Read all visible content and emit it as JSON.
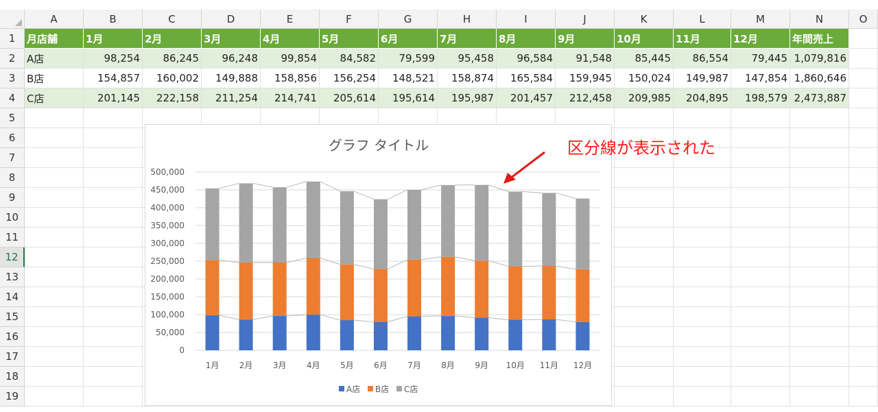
{
  "columns": [
    "A",
    "B",
    "C",
    "D",
    "E",
    "F",
    "G",
    "H",
    "I",
    "J",
    "K",
    "L",
    "M",
    "N",
    "O"
  ],
  "rows": [
    "1",
    "2",
    "3",
    "4",
    "5",
    "6",
    "7",
    "8",
    "9",
    "10",
    "11",
    "12",
    "13",
    "14",
    "15",
    "16",
    "17",
    "18",
    "19"
  ],
  "active_row": "12",
  "table": {
    "header": [
      "月店舗",
      "1月",
      "2月",
      "3月",
      "4月",
      "5月",
      "6月",
      "7月",
      "8月",
      "9月",
      "10月",
      "11月",
      "12月",
      "年間売上"
    ],
    "data": [
      [
        "A店",
        "98,254",
        "86,245",
        "96,248",
        "99,854",
        "84,582",
        "79,599",
        "95,458",
        "96,584",
        "91,548",
        "85,445",
        "86,554",
        "79,445",
        "1,079,816"
      ],
      [
        "B店",
        "154,857",
        "160,002",
        "149,888",
        "158,856",
        "156,254",
        "148,521",
        "158,874",
        "165,584",
        "159,945",
        "150,024",
        "149,987",
        "147,854",
        "1,860,646"
      ],
      [
        "C店",
        "201,145",
        "222,158",
        "211,254",
        "214,741",
        "205,614",
        "195,614",
        "195,987",
        "201,457",
        "212,458",
        "209,985",
        "204,895",
        "198,579",
        "2,473,887"
      ]
    ]
  },
  "chart_data": {
    "type": "bar",
    "stacked": true,
    "title": "グラフ タイトル",
    "categories": [
      "1月",
      "2月",
      "3月",
      "4月",
      "5月",
      "6月",
      "7月",
      "8月",
      "9月",
      "10月",
      "11月",
      "12月"
    ],
    "series": [
      {
        "name": "A店",
        "color": "#4472c4",
        "values": [
          98254,
          86245,
          96248,
          99854,
          84582,
          79599,
          95458,
          96584,
          91548,
          85445,
          86554,
          79445
        ]
      },
      {
        "name": "B店",
        "color": "#ed7d31",
        "values": [
          154857,
          160002,
          149888,
          158856,
          156254,
          148521,
          158874,
          165584,
          159945,
          150024,
          149987,
          147854
        ]
      },
      {
        "name": "C店",
        "color": "#a5a5a5",
        "values": [
          201145,
          222158,
          211254,
          214741,
          205614,
          195614,
          195987,
          201457,
          212458,
          209985,
          204895,
          198579
        ]
      }
    ],
    "ylim": [
      0,
      500000
    ],
    "yticks": [
      "0",
      "50,000",
      "100,000",
      "150,000",
      "200,000",
      "250,000",
      "300,000",
      "350,000",
      "400,000",
      "450,000",
      "500,000"
    ],
    "series_lines": true,
    "grid": true,
    "legend": "bottom"
  },
  "annotation": {
    "text": "区分線が表示された",
    "color": "#ff1a1a"
  }
}
